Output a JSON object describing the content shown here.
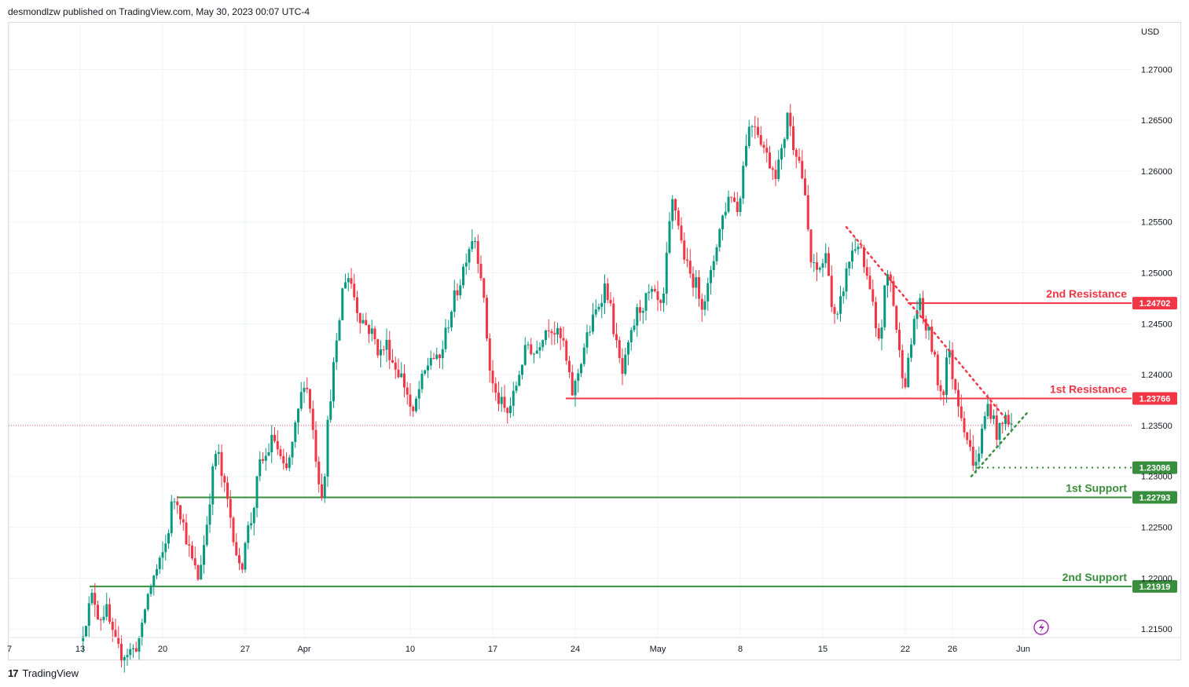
{
  "header": {
    "publisher_line": "desmondlzw published on TradingView.com, May 30, 2023 00:07 UTC-4"
  },
  "footer": {
    "brand": "TradingView",
    "logo_text": "17"
  },
  "colors": {
    "up": "#089981",
    "down": "#f23645",
    "resistance": "#f23645",
    "support": "#388e3c",
    "grid": "#f0f3fa"
  },
  "chart_data": {
    "type": "candlestick",
    "currency_label": "USD",
    "y_range": [
      1.212,
      1.2745
    ],
    "y_ticks": [
      "1.27000",
      "1.26500",
      "1.26000",
      "1.25500",
      "1.25000",
      "1.24500",
      "1.24000",
      "1.23500",
      "1.23000",
      "1.22500",
      "1.22000",
      "1.21500"
    ],
    "x_ticks": [
      {
        "label": "7",
        "day": 0
      },
      {
        "label": "13",
        "day": 6
      },
      {
        "label": "20",
        "day": 13
      },
      {
        "label": "27",
        "day": 20
      },
      {
        "label": "Apr",
        "day": 25
      },
      {
        "label": "10",
        "day": 34
      },
      {
        "label": "17",
        "day": 41
      },
      {
        "label": "24",
        "day": 48
      },
      {
        "label": "May",
        "day": 55
      },
      {
        "label": "8",
        "day": 62
      },
      {
        "label": "15",
        "day": 69
      },
      {
        "label": "22",
        "day": 76
      },
      {
        "label": "26",
        "day": 80
      },
      {
        "label": "Jun",
        "day": 86
      }
    ],
    "price_anchors": [
      [
        6,
        1.2138
      ],
      [
        6.6,
        1.2165
      ],
      [
        7.1,
        1.2185
      ],
      [
        7.6,
        1.216
      ],
      [
        8.2,
        1.217
      ],
      [
        8.8,
        1.214
      ],
      [
        9.4,
        1.2125
      ],
      [
        10.6,
        1.213
      ],
      [
        11.2,
        1.2145
      ],
      [
        11.6,
        1.2178
      ],
      [
        12.2,
        1.22
      ],
      [
        12.8,
        1.2215
      ],
      [
        13.4,
        1.224
      ],
      [
        13.8,
        1.2275
      ],
      [
        14.2,
        1.228
      ],
      [
        14.8,
        1.225
      ],
      [
        15.4,
        1.222
      ],
      [
        16.0,
        1.22
      ],
      [
        16.6,
        1.224
      ],
      [
        17.2,
        1.23
      ],
      [
        17.6,
        1.233
      ],
      [
        18.0,
        1.23
      ],
      [
        18.6,
        1.227
      ],
      [
        19.2,
        1.223
      ],
      [
        19.6,
        1.22
      ],
      [
        20.0,
        1.224
      ],
      [
        20.6,
        1.226
      ],
      [
        21.2,
        1.231
      ],
      [
        21.8,
        1.232
      ],
      [
        22.4,
        1.234
      ],
      [
        22.9,
        1.232
      ],
      [
        23.4,
        1.23
      ],
      [
        24.0,
        1.233
      ],
      [
        24.6,
        1.237
      ],
      [
        25.0,
        1.2395
      ],
      [
        25.4,
        1.238
      ],
      [
        25.8,
        1.234
      ],
      [
        26.2,
        1.23
      ],
      [
        26.6,
        1.228
      ],
      [
        27.0,
        1.235
      ],
      [
        27.4,
        1.24
      ],
      [
        27.8,
        1.243
      ],
      [
        28.2,
        1.248
      ],
      [
        28.6,
        1.25
      ],
      [
        29.0,
        1.249
      ],
      [
        29.6,
        1.246
      ],
      [
        30.2,
        1.245
      ],
      [
        30.8,
        1.244
      ],
      [
        31.4,
        1.242
      ],
      [
        32.0,
        1.243
      ],
      [
        32.6,
        1.241
      ],
      [
        33.2,
        1.24
      ],
      [
        33.8,
        1.238
      ],
      [
        34.2,
        1.2355
      ],
      [
        34.6,
        1.238
      ],
      [
        35.2,
        1.24
      ],
      [
        35.8,
        1.242
      ],
      [
        36.4,
        1.241
      ],
      [
        37.0,
        1.244
      ],
      [
        37.6,
        1.247
      ],
      [
        38.2,
        1.249
      ],
      [
        38.8,
        1.252
      ],
      [
        39.4,
        1.254
      ],
      [
        40.0,
        1.25
      ],
      [
        40.4,
        1.245
      ],
      [
        40.8,
        1.24
      ],
      [
        41.2,
        1.238
      ],
      [
        41.8,
        1.237
      ],
      [
        42.2,
        1.236
      ],
      [
        42.8,
        1.238
      ],
      [
        43.4,
        1.241
      ],
      [
        44.0,
        1.243
      ],
      [
        44.6,
        1.242
      ],
      [
        45.2,
        1.244
      ],
      [
        45.8,
        1.245
      ],
      [
        46.4,
        1.244
      ],
      [
        47.0,
        1.243
      ],
      [
        47.4,
        1.24
      ],
      [
        47.8,
        1.238
      ],
      [
        48.2,
        1.24
      ],
      [
        48.8,
        1.243
      ],
      [
        49.4,
        1.245
      ],
      [
        50.0,
        1.247
      ],
      [
        50.6,
        1.249
      ],
      [
        51.2,
        1.245
      ],
      [
        51.6,
        1.242
      ],
      [
        52.0,
        1.24
      ],
      [
        52.6,
        1.243
      ],
      [
        53.2,
        1.246
      ],
      [
        53.8,
        1.247
      ],
      [
        54.4,
        1.248
      ],
      [
        55.0,
        1.247
      ],
      [
        55.4,
        1.246
      ],
      [
        55.8,
        1.252
      ],
      [
        56.2,
        1.257
      ],
      [
        56.6,
        1.256
      ],
      [
        57.0,
        1.253
      ],
      [
        57.6,
        1.25
      ],
      [
        58.2,
        1.249
      ],
      [
        58.8,
        1.247
      ],
      [
        59.4,
        1.249
      ],
      [
        60.0,
        1.253
      ],
      [
        60.6,
        1.256
      ],
      [
        61.2,
        1.258
      ],
      [
        61.8,
        1.256
      ],
      [
        62.2,
        1.26
      ],
      [
        62.6,
        1.264
      ],
      [
        63.2,
        1.265
      ],
      [
        63.8,
        1.263
      ],
      [
        64.4,
        1.261
      ],
      [
        65.0,
        1.26
      ],
      [
        65.6,
        1.262
      ],
      [
        66.0,
        1.266
      ],
      [
        66.4,
        1.263
      ],
      [
        66.8,
        1.262
      ],
      [
        67.2,
        1.26
      ],
      [
        67.6,
        1.256
      ],
      [
        68.0,
        1.251
      ],
      [
        68.4,
        1.25
      ],
      [
        69.0,
        1.251
      ],
      [
        69.4,
        1.252
      ],
      [
        69.8,
        1.246
      ],
      [
        70.2,
        1.245
      ],
      [
        70.8,
        1.249
      ],
      [
        71.4,
        1.252
      ],
      [
        72.0,
        1.253
      ],
      [
        72.4,
        1.251
      ],
      [
        72.8,
        1.249
      ],
      [
        73.2,
        1.247
      ],
      [
        73.6,
        1.243
      ],
      [
        74.0,
        1.245
      ],
      [
        74.4,
        1.25
      ],
      [
        74.8,
        1.249
      ],
      [
        75.2,
        1.245
      ],
      [
        75.6,
        1.241
      ],
      [
        76.0,
        1.2395
      ],
      [
        76.4,
        1.242
      ],
      [
        76.8,
        1.246
      ],
      [
        77.2,
        1.247
      ],
      [
        77.6,
        1.245
      ],
      [
        78.0,
        1.244
      ],
      [
        78.4,
        1.242
      ],
      [
        78.8,
        1.239
      ],
      [
        79.2,
        1.238
      ],
      [
        79.6,
        1.243
      ],
      [
        80.0,
        1.24
      ],
      [
        80.4,
        1.238
      ],
      [
        80.8,
        1.236
      ],
      [
        81.2,
        1.234
      ],
      [
        81.6,
        1.232
      ],
      [
        82.0,
        1.231
      ],
      [
        82.3,
        1.233
      ],
      [
        82.6,
        1.235
      ],
      [
        83.0,
        1.237
      ],
      [
        83.4,
        1.236
      ],
      [
        83.8,
        1.234
      ],
      [
        84.2,
        1.235
      ],
      [
        84.6,
        1.236
      ],
      [
        85.0,
        1.235
      ]
    ],
    "levels": [
      {
        "name": "2nd Resistance",
        "value": 1.24702,
        "tag": "1.24702",
        "type": "resistance",
        "from_day": 76.2
      },
      {
        "name": "1st Resistance",
        "value": 1.23766,
        "tag": "1.23766",
        "type": "resistance",
        "from_day": 47.2
      },
      {
        "name": "1st Support",
        "value": 1.22793,
        "tag": "1.22793",
        "type": "support",
        "from_day": 14.2
      },
      {
        "name": "2nd Support",
        "value": 1.21919,
        "tag": "1.21919",
        "type": "support",
        "from_day": 6.8
      }
    ],
    "swing_low": {
      "value": 1.23086,
      "tag": "1.23086",
      "from_day": 82.0
    },
    "trendlines": [
      {
        "type": "resistance",
        "style": "dotted",
        "from": [
          71.0,
          1.2545
        ],
        "to": [
          85.0,
          1.235
        ]
      },
      {
        "type": "support",
        "style": "dotted",
        "from": [
          81.6,
          1.23
        ],
        "to": [
          86.3,
          1.2362
        ]
      }
    ],
    "current_price": 1.235,
    "grid": true,
    "legend": "none"
  }
}
